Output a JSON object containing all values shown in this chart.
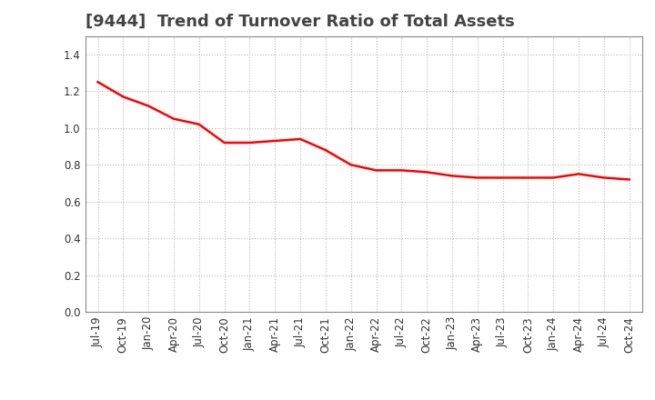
{
  "title": "[9444]  Trend of Turnover Ratio of Total Assets",
  "x_labels": [
    "Jul-19",
    "Oct-19",
    "Jan-20",
    "Apr-20",
    "Jul-20",
    "Oct-20",
    "Jan-21",
    "Apr-21",
    "Jul-21",
    "Oct-21",
    "Jan-22",
    "Apr-22",
    "Jul-22",
    "Oct-22",
    "Jan-23",
    "Apr-23",
    "Jul-23",
    "Oct-23",
    "Jan-24",
    "Apr-24",
    "Jul-24",
    "Oct-24"
  ],
  "y_values": [
    1.25,
    1.17,
    1.12,
    1.05,
    1.02,
    0.92,
    0.92,
    0.93,
    0.94,
    0.88,
    0.8,
    0.77,
    0.77,
    0.76,
    0.74,
    0.73,
    0.73,
    0.73,
    0.73,
    0.75,
    0.73,
    0.72
  ],
  "line_color": "#FF0000",
  "line_width": 1.8,
  "ylim": [
    0.0,
    1.5
  ],
  "yticks": [
    0.0,
    0.2,
    0.4,
    0.6,
    0.8,
    1.0,
    1.2,
    1.4
  ],
  "grid_color": "#bbbbbb",
  "grid_style": ":",
  "background_color": "#ffffff",
  "title_fontsize": 13,
  "tick_fontsize": 8.5,
  "title_color": "#444444"
}
